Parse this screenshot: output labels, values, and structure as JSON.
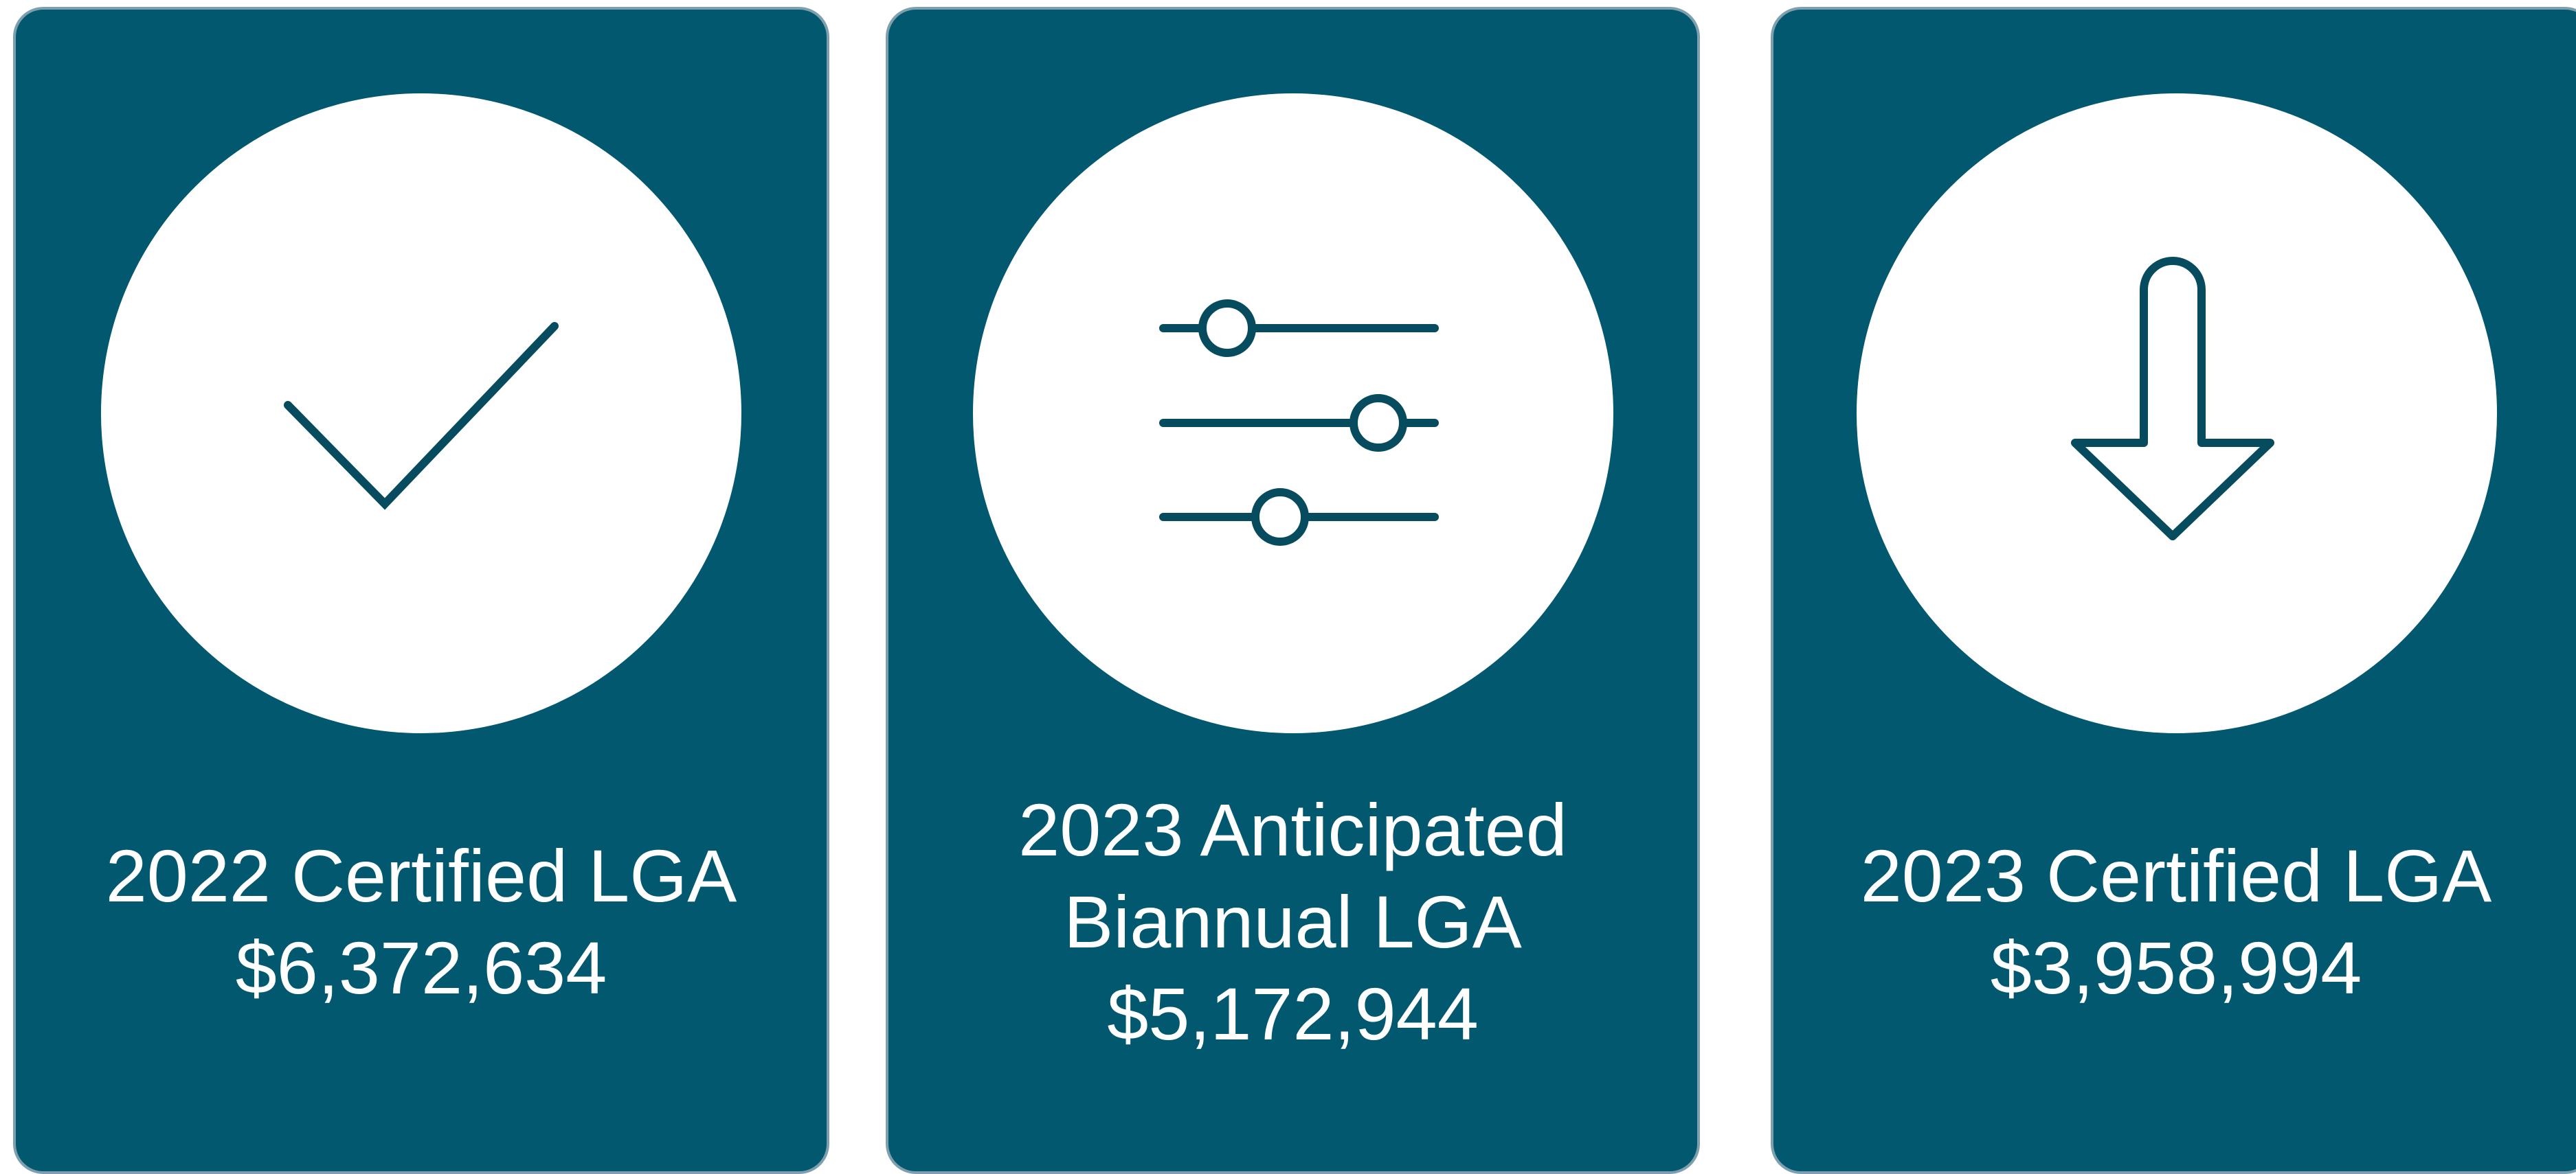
{
  "cards": [
    {
      "title": "2022 Certified LGA",
      "value": "$6,372,634"
    },
    {
      "title": "2023 Anticipated Biannual LGA",
      "value": "$5,172,944"
    },
    {
      "title": "2023 Certified LGA",
      "value": "$3,958,994"
    }
  ]
}
